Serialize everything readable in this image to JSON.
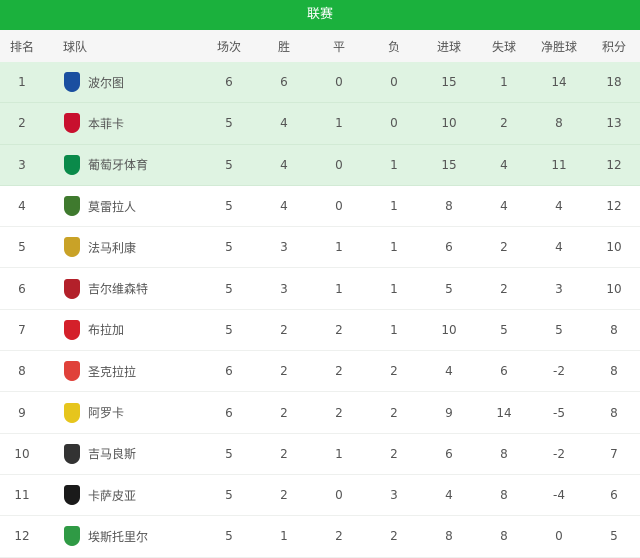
{
  "title": "联赛",
  "headers": [
    "排名",
    "球队",
    "场次",
    "胜",
    "平",
    "负",
    "进球",
    "失球",
    "净胜球",
    "积分"
  ],
  "colors": {
    "header": "#1bb13d",
    "highlight": "#dff3e2"
  },
  "rows": [
    {
      "rank": "1",
      "team": "波尔图",
      "logo": "#1a4fa0",
      "played": "6",
      "w": "6",
      "d": "0",
      "l": "0",
      "gf": "15",
      "ga": "1",
      "gd": "14",
      "pts": "18"
    },
    {
      "rank": "2",
      "team": "本菲卡",
      "logo": "#c8102e",
      "played": "5",
      "w": "4",
      "d": "1",
      "l": "0",
      "gf": "10",
      "ga": "2",
      "gd": "8",
      "pts": "13"
    },
    {
      "rank": "3",
      "team": "葡萄牙体育",
      "logo": "#0a8a4a",
      "played": "5",
      "w": "4",
      "d": "0",
      "l": "1",
      "gf": "15",
      "ga": "4",
      "gd": "11",
      "pts": "12"
    },
    {
      "rank": "4",
      "team": "莫雷拉人",
      "logo": "#3f7a2e",
      "played": "5",
      "w": "4",
      "d": "0",
      "l": "1",
      "gf": "8",
      "ga": "4",
      "gd": "4",
      "pts": "12"
    },
    {
      "rank": "5",
      "team": "法马利康",
      "logo": "#c9a227",
      "played": "5",
      "w": "3",
      "d": "1",
      "l": "1",
      "gf": "6",
      "ga": "2",
      "gd": "4",
      "pts": "10"
    },
    {
      "rank": "6",
      "team": "吉尔维森特",
      "logo": "#b3202a",
      "played": "5",
      "w": "3",
      "d": "1",
      "l": "1",
      "gf": "5",
      "ga": "2",
      "gd": "3",
      "pts": "10"
    },
    {
      "rank": "7",
      "team": "布拉加",
      "logo": "#d4202a",
      "played": "5",
      "w": "2",
      "d": "2",
      "l": "1",
      "gf": "10",
      "ga": "5",
      "gd": "5",
      "pts": "8"
    },
    {
      "rank": "8",
      "team": "圣克拉拉",
      "logo": "#e0413a",
      "played": "6",
      "w": "2",
      "d": "2",
      "l": "2",
      "gf": "4",
      "ga": "6",
      "gd": "-2",
      "pts": "8"
    },
    {
      "rank": "9",
      "team": "阿罗卡",
      "logo": "#e6c51d",
      "played": "6",
      "w": "2",
      "d": "2",
      "l": "2",
      "gf": "9",
      "ga": "14",
      "gd": "-5",
      "pts": "8"
    },
    {
      "rank": "10",
      "team": "吉马良斯",
      "logo": "#333333",
      "played": "5",
      "w": "2",
      "d": "1",
      "l": "2",
      "gf": "6",
      "ga": "8",
      "gd": "-2",
      "pts": "7"
    },
    {
      "rank": "11",
      "team": "卡萨皮亚",
      "logo": "#1a1a1a",
      "played": "5",
      "w": "2",
      "d": "0",
      "l": "3",
      "gf": "4",
      "ga": "8",
      "gd": "-4",
      "pts": "6"
    },
    {
      "rank": "12",
      "team": "埃斯托里尔",
      "logo": "#2f9a45",
      "played": "5",
      "w": "1",
      "d": "2",
      "l": "2",
      "gf": "8",
      "ga": "8",
      "gd": "0",
      "pts": "5"
    }
  ]
}
